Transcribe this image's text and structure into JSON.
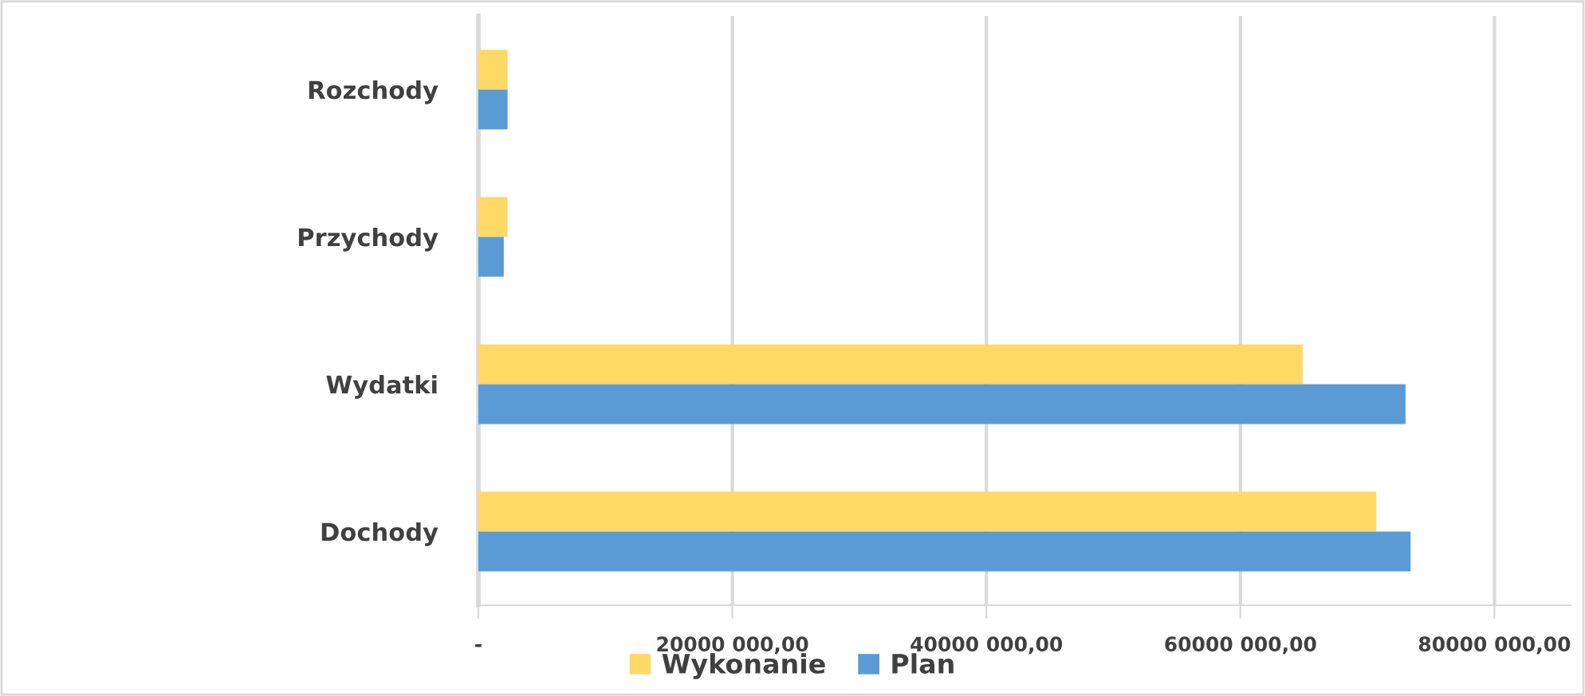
{
  "chart_data": {
    "type": "bar",
    "orientation": "horizontal",
    "categories": [
      "Rozchody",
      "Przychody",
      "Wydatki",
      "Dochody"
    ],
    "series": [
      {
        "name": "Wykonanie",
        "color": "#ffd966",
        "values": [
          2300000,
          2300000,
          64900000,
          70700000
        ]
      },
      {
        "name": "Plan",
        "color": "#5b9bd5",
        "values": [
          2300000,
          2000000,
          73000000,
          73400000
        ]
      }
    ],
    "xlim": [
      0,
      86000000
    ],
    "xticks": [
      {
        "value": 0,
        "label": "-"
      },
      {
        "value": 20000000,
        "label": "20000 000,00"
      },
      {
        "value": 40000000,
        "label": "40000 000,00"
      },
      {
        "value": 60000000,
        "label": "60000 000,00"
      },
      {
        "value": 80000000,
        "label": "80000 000,00"
      }
    ],
    "grid": "x",
    "legend": "bottom"
  }
}
